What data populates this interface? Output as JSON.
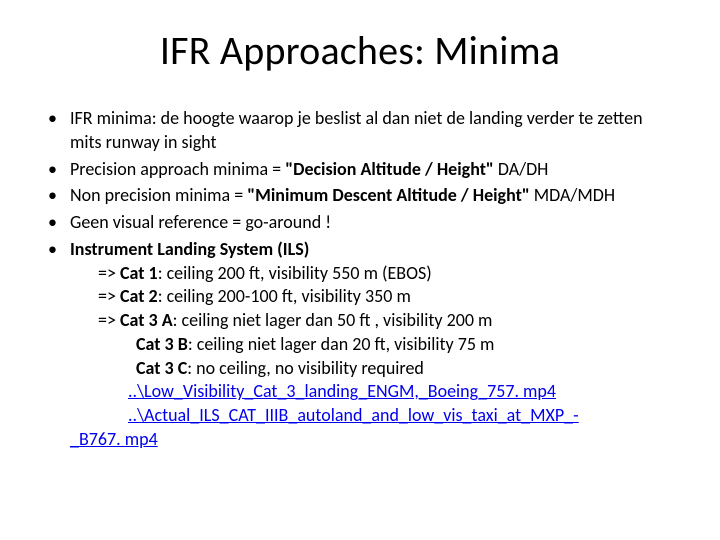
{
  "title": "IFR Approaches: Minima",
  "bullets": {
    "b1": "IFR minima: de hoogte waarop je beslist al dan niet de landing verder te zetten mits runway in sight",
    "b2a": "Precision approach minima = ",
    "b2b": "\"Decision Altitude / Height\"",
    "b2c": " DA/DH",
    "b3a": "Non precision minima = ",
    "b3b": "\"Minimum Descent Altitude / Height\"",
    "b3c": " MDA/MDH",
    "b4": "Geen visual reference = go-around !",
    "b5": "Instrument Landing System (ILS)",
    "b5s1a": "=> ",
    "b5s1b": "Cat 1",
    "b5s1c": ": ceiling 200 ft, visibility 550 m (EBOS)",
    "b5s2a": "=> ",
    "b5s2b": "Cat 2",
    "b5s2c": ": ceiling 200-100 ft, visibility 350 m",
    "b5s3a": "=> ",
    "b5s3b": "Cat 3 A",
    "b5s3c": ": ceiling niet lager dan 50 ft , visibility 200 m",
    "b5s4a": "Cat 3 B",
    "b5s4b": ": ceiling niet lager dan 20 ft, visibility 75 m",
    "b5s5a": "Cat 3 C",
    "b5s5b": ": no ceiling, no visibility required",
    "link1": "..\\Low_Visibility_Cat_3_landing_ENGM,_Boeing_757. mp4",
    "link2a": "..\\Actual_ILS_CAT_IIIB_autoland_and_low_vis_taxi_at_MXP_-",
    "link2b": "_B767. mp4"
  },
  "style": {
    "background": "#ffffff",
    "text_color": "#000000",
    "link_color": "#0000ee",
    "title_fontsize": 40,
    "body_fontsize": 18,
    "font_family": "Calibri"
  }
}
